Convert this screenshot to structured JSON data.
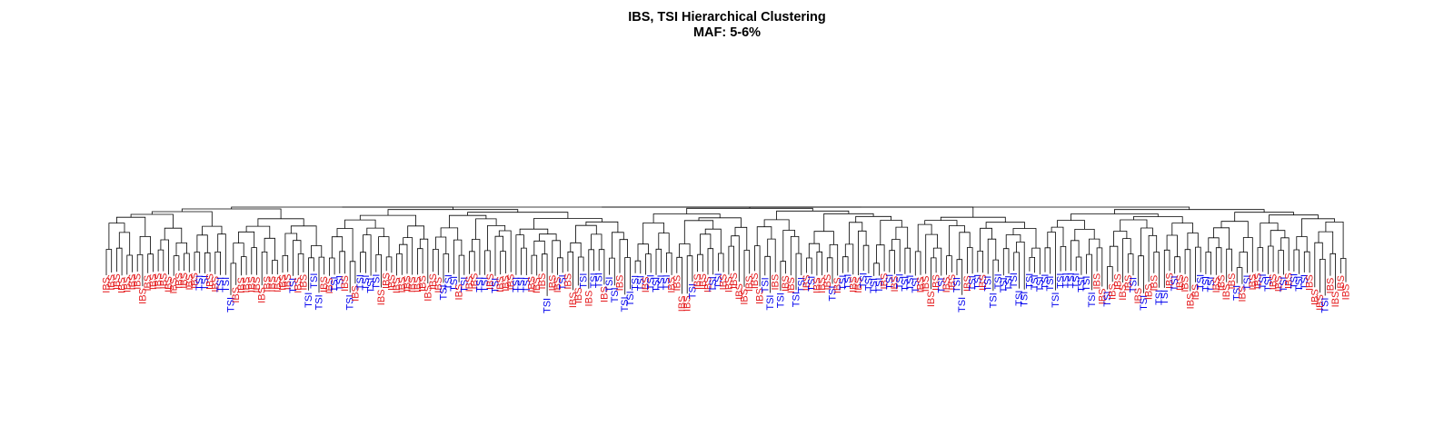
{
  "chart_data": {
    "type": "dendrogram",
    "title": "IBS, TSI Hierarchical Clustering",
    "subtitle": "MAF: 5-6%",
    "xlabel": "",
    "ylabel": "",
    "axes_shown": false,
    "leaf_order": "left-to-right",
    "colors": {
      "IBS": "#e41a1c",
      "TSI": "#0000ee",
      "branch": "#000000"
    },
    "leaves": [
      "IBS",
      "IBS",
      "IBS",
      "IBS",
      "IBS",
      "IBS",
      "IBS",
      "IBS",
      "IBS",
      "IBS",
      "IBS",
      "IBS",
      "IBS",
      "IBS",
      "IBS",
      "IBS",
      "IBS",
      "IBS",
      "TSI",
      "TSI",
      "IBS",
      "IBS",
      "TSI",
      "TSI",
      "TSI",
      "IBS",
      "IBS",
      "IBS",
      "IBS",
      "IBS",
      "IBS",
      "IBS",
      "IBS",
      "IBS",
      "IBS",
      "IBS",
      "TSI",
      "IBS",
      "IBS",
      "TSI",
      "TSI",
      "TSI",
      "IBS",
      "IBS",
      "TSI",
      "TSI",
      "IBS",
      "TSI",
      "IBS",
      "TSI",
      "TSI",
      "TSI",
      "TSI",
      "IBS",
      "IBS",
      "IBS",
      "IBS",
      "IBS",
      "IBS",
      "IBS",
      "IBS",
      "IBS",
      "IBS",
      "IBS",
      "IBS",
      "TSI",
      "TSI",
      "TSI",
      "IBS",
      "TSI",
      "IBS",
      "IBS",
      "TSI",
      "TSI",
      "IBS",
      "TSI",
      "IBS",
      "IBS",
      "IBS",
      "TSI",
      "TSI",
      "TSI",
      "IBS",
      "IBS",
      "IBS",
      "TSI",
      "IBS",
      "IBS",
      "TSI",
      "IBS",
      "IBS",
      "IBS",
      "TSI",
      "IBS",
      "TSI",
      "TSI",
      "IBS",
      "TSI",
      "TSI",
      "IBS",
      "TSI",
      "TSI",
      "TSI",
      "TSI",
      "IBS",
      "TSI",
      "TSI",
      "TSI",
      "TSI",
      "IBS",
      "IBS",
      "IBS",
      "IBS",
      "TSI",
      "IBS",
      "IBS",
      "IBS",
      "TSI",
      "TSI",
      "IBS",
      "IBS",
      "IBS",
      "IBS",
      "IBS",
      "IBS",
      "IBS",
      "IBS",
      "TSI",
      "TSI",
      "IBS",
      "TSI",
      "IBS",
      "IBS",
      "TSI",
      "TSI",
      "IBS",
      "TSI",
      "IBS",
      "IBS",
      "IBS",
      "TSI",
      "IBS",
      "TSI",
      "TSI",
      "IBS",
      "IBS",
      "TSI",
      "TSI",
      "TSI",
      "TSI",
      "IBS",
      "TSI",
      "IBS",
      "TSI",
      "TSI",
      "TSI",
      "TSI",
      "IBS",
      "IBS",
      "IBS",
      "IBS",
      "TSI",
      "IBS",
      "IBS",
      "TSI",
      "TSI",
      "IBS",
      "TSI",
      "TSI",
      "IBS",
      "TSI",
      "TSI",
      "TSI",
      "TSI",
      "TSI",
      "TSI",
      "TSI",
      "TSI",
      "TSI",
      "TSI",
      "TSI",
      "TSI",
      "TSI",
      "TSI",
      "TSI",
      "TSI",
      "TSI",
      "TSI",
      "TSI",
      "TSI",
      "TSI",
      "IBS",
      "IBS",
      "TSI",
      "IBS",
      "IBS",
      "IBS",
      "IBS",
      "TSI",
      "IBS",
      "TSI",
      "IBS",
      "IBS",
      "TSI",
      "TSI",
      "IBS",
      "TSI",
      "IBS",
      "IBS",
      "IBS",
      "IBS",
      "TSI",
      "TSI",
      "TSI",
      "IBS",
      "IBS",
      "IBS",
      "IBS",
      "TSI",
      "IBS",
      "TSI",
      "IBS",
      "IBS",
      "TSI",
      "TSI",
      "IBS",
      "IBS",
      "TSI",
      "IBS",
      "TSI",
      "TSI",
      "TSI",
      "IBS",
      "IBS",
      "IBS",
      "TSI",
      "IBS",
      "IBS",
      "IBS",
      "IBS"
    ]
  }
}
